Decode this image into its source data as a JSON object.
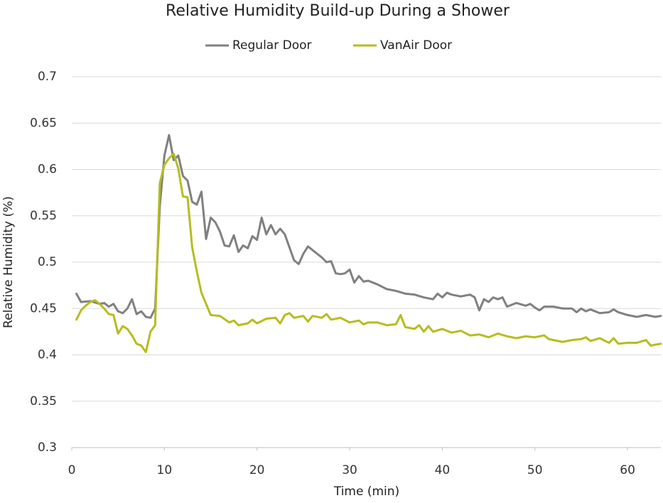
{
  "chart_data": {
    "type": "line",
    "title": "Relative Humidity Build-up During a Shower",
    "x_label": "Time (min)",
    "y_label": "Relative Humidity (%)",
    "xlim": [
      0,
      63.6
    ],
    "xticks": [
      0,
      10,
      20,
      30,
      40,
      50,
      60
    ],
    "ylim": [
      0.3,
      0.7
    ],
    "yticks": [
      0.3,
      0.35,
      0.4,
      0.45,
      0.5,
      0.55,
      0.6,
      0.65,
      0.7
    ],
    "grid": true,
    "legend": "top",
    "series": [
      {
        "name": "Regular Door",
        "color": "#808080",
        "x": [
          0.5,
          1,
          2,
          3,
          3.5,
          4,
          4.5,
          5,
          5.5,
          6,
          6.5,
          7,
          7.5,
          8,
          8.5,
          9,
          9.5,
          10,
          10.5,
          11,
          11.5,
          12,
          12.5,
          13,
          13.5,
          14,
          14.5,
          15,
          15.5,
          16,
          16.5,
          17,
          17.5,
          18,
          18.5,
          19,
          19.5,
          20,
          20.5,
          21,
          21.5,
          22,
          22.5,
          23,
          24,
          24.5,
          25,
          25.5,
          26,
          27,
          27.5,
          28,
          28.5,
          29,
          29.5,
          30,
          30.5,
          31,
          31.5,
          32,
          33,
          34,
          35,
          36,
          37,
          38,
          39,
          39.5,
          40,
          40.5,
          41,
          42,
          43,
          43.5,
          44,
          44.5,
          45,
          45.5,
          46,
          46.5,
          47,
          48,
          49,
          49.5,
          50,
          50.5,
          51,
          52,
          53,
          54,
          54.5,
          55,
          55.5,
          56,
          57,
          58,
          58.5,
          59,
          60,
          61,
          62,
          63,
          63.6
        ],
        "values": [
          0.466,
          0.457,
          0.458,
          0.455,
          0.456,
          0.452,
          0.455,
          0.447,
          0.445,
          0.45,
          0.46,
          0.444,
          0.447,
          0.441,
          0.44,
          0.45,
          0.56,
          0.615,
          0.637,
          0.61,
          0.615,
          0.593,
          0.588,
          0.565,
          0.562,
          0.576,
          0.525,
          0.548,
          0.543,
          0.533,
          0.518,
          0.517,
          0.529,
          0.511,
          0.518,
          0.515,
          0.528,
          0.524,
          0.548,
          0.53,
          0.54,
          0.53,
          0.536,
          0.53,
          0.502,
          0.498,
          0.509,
          0.517,
          0.513,
          0.505,
          0.5,
          0.501,
          0.488,
          0.487,
          0.488,
          0.492,
          0.478,
          0.485,
          0.479,
          0.48,
          0.476,
          0.471,
          0.469,
          0.466,
          0.465,
          0.462,
          0.46,
          0.466,
          0.462,
          0.467,
          0.465,
          0.463,
          0.465,
          0.462,
          0.448,
          0.46,
          0.457,
          0.462,
          0.46,
          0.462,
          0.452,
          0.456,
          0.453,
          0.455,
          0.451,
          0.448,
          0.452,
          0.452,
          0.45,
          0.45,
          0.446,
          0.45,
          0.447,
          0.449,
          0.445,
          0.446,
          0.449,
          0.446,
          0.443,
          0.441,
          0.443,
          0.441,
          0.442
        ]
      },
      {
        "name": "VanAir Door",
        "color": "#b5bd1e",
        "x": [
          0.5,
          1,
          1.5,
          2,
          2.5,
          3,
          3.5,
          4,
          4.5,
          5,
          5.5,
          6,
          6.5,
          7,
          7.5,
          8,
          8.5,
          9,
          9.5,
          10,
          10.5,
          11,
          11.5,
          12,
          12.5,
          13,
          13.5,
          14,
          14.5,
          15,
          16,
          17,
          17.5,
          18,
          19,
          19.5,
          20,
          21,
          22,
          22.5,
          23,
          23.5,
          24,
          25,
          25.5,
          26,
          27,
          27.5,
          28,
          29,
          30,
          31,
          31.5,
          32,
          33,
          34,
          35,
          35.5,
          36,
          37,
          37.5,
          38,
          38.5,
          39,
          40,
          41,
          42,
          43,
          44,
          45,
          46,
          47,
          48,
          49,
          50,
          51,
          51.5,
          52,
          53,
          54,
          55,
          55.5,
          56,
          57,
          58,
          58.5,
          59,
          60,
          61,
          62,
          62.5,
          63,
          63.6
        ],
        "values": [
          0.438,
          0.448,
          0.453,
          0.457,
          0.459,
          0.455,
          0.45,
          0.444,
          0.443,
          0.423,
          0.431,
          0.428,
          0.421,
          0.412,
          0.41,
          0.403,
          0.425,
          0.432,
          0.585,
          0.605,
          0.612,
          0.617,
          0.601,
          0.571,
          0.57,
          0.516,
          0.49,
          0.467,
          0.455,
          0.443,
          0.442,
          0.435,
          0.437,
          0.432,
          0.434,
          0.438,
          0.434,
          0.439,
          0.44,
          0.434,
          0.443,
          0.445,
          0.44,
          0.442,
          0.436,
          0.442,
          0.44,
          0.444,
          0.438,
          0.44,
          0.435,
          0.437,
          0.433,
          0.435,
          0.435,
          0.432,
          0.433,
          0.443,
          0.43,
          0.428,
          0.432,
          0.425,
          0.431,
          0.425,
          0.428,
          0.424,
          0.426,
          0.421,
          0.422,
          0.419,
          0.423,
          0.42,
          0.418,
          0.42,
          0.419,
          0.421,
          0.417,
          0.416,
          0.414,
          0.416,
          0.417,
          0.419,
          0.415,
          0.418,
          0.413,
          0.418,
          0.412,
          0.413,
          0.413,
          0.416,
          0.41,
          0.411,
          0.412
        ]
      }
    ]
  }
}
